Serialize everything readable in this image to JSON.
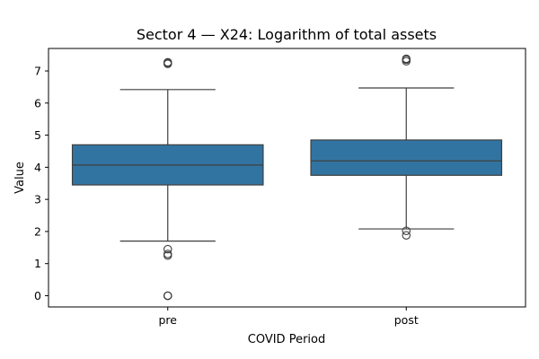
{
  "chart_data": {
    "type": "box",
    "title": "Sector 4 — X24: Logarithm of total assets",
    "xlabel": "COVID Period",
    "ylabel": "Value",
    "ylim": [
      -0.35,
      7.7
    ],
    "yticks": [
      0,
      1,
      2,
      3,
      4,
      5,
      6,
      7
    ],
    "grid": false,
    "legend": "none",
    "box_color": "#3274a1",
    "edge_color": "#3f3f3f",
    "categories": [
      "pre",
      "post"
    ],
    "boxes": [
      {
        "category": "pre",
        "whisker_low": 1.7,
        "q1": 3.45,
        "median": 4.07,
        "q3": 4.7,
        "whisker_high": 6.42,
        "outliers": [
          0.0,
          0.0,
          0.0,
          1.25,
          1.3,
          1.45,
          7.22,
          7.25,
          7.27
        ]
      },
      {
        "category": "post",
        "whisker_low": 2.08,
        "q1": 3.75,
        "median": 4.2,
        "q3": 4.85,
        "whisker_high": 6.47,
        "outliers": [
          1.88,
          2.02,
          7.3,
          7.35,
          7.38
        ]
      }
    ]
  }
}
